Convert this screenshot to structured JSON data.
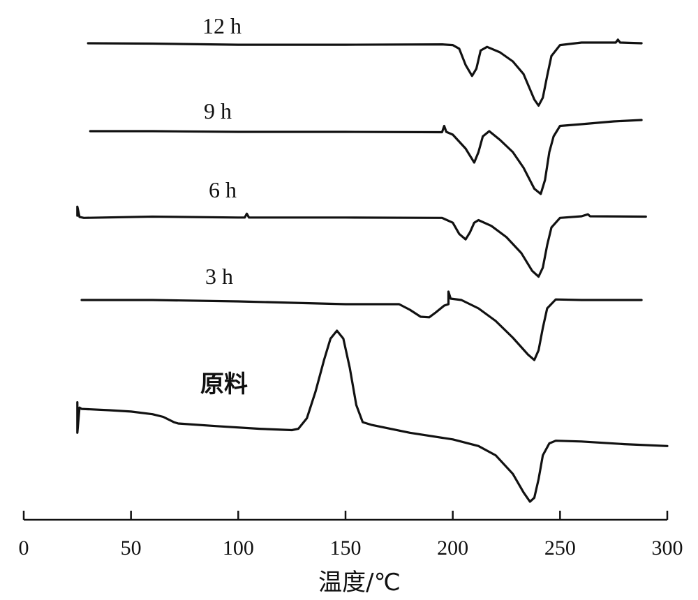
{
  "chart_data": {
    "type": "line",
    "xlabel": "温度/℃",
    "ylabel": "",
    "xlim": [
      0,
      300
    ],
    "xticks": [
      0,
      50,
      100,
      150,
      200,
      250,
      300
    ],
    "y_axis_shown": false,
    "grid": false,
    "legend": "inline labels above each curve",
    "series": [
      {
        "name": "12 h",
        "points": [
          [
            30,
            0
          ],
          [
            60,
            -0.01
          ],
          [
            100,
            -0.04
          ],
          [
            150,
            -0.04
          ],
          [
            195,
            -0.03
          ],
          [
            200,
            -0.05
          ],
          [
            203,
            -0.15
          ],
          [
            206,
            -0.6
          ],
          [
            209,
            -0.9
          ],
          [
            211,
            -0.7
          ],
          [
            213,
            -0.2
          ],
          [
            216,
            -0.1
          ],
          [
            222,
            -0.25
          ],
          [
            228,
            -0.5
          ],
          [
            233,
            -0.85
          ],
          [
            238,
            -1.55
          ],
          [
            240,
            -1.72
          ],
          [
            242,
            -1.5
          ],
          [
            244,
            -0.9
          ],
          [
            246,
            -0.35
          ],
          [
            250,
            -0.05
          ],
          [
            260,
            0.02
          ],
          [
            276,
            0.02
          ],
          [
            277,
            0.1
          ],
          [
            278,
            0.02
          ],
          [
            288,
            0
          ]
        ]
      },
      {
        "name": "9 h",
        "points": [
          [
            31,
            0
          ],
          [
            60,
            0
          ],
          [
            100,
            -0.02
          ],
          [
            150,
            -0.02
          ],
          [
            195,
            -0.03
          ],
          [
            196,
            0.15
          ],
          [
            197,
            -0.02
          ],
          [
            200,
            -0.1
          ],
          [
            203,
            -0.3
          ],
          [
            206,
            -0.5
          ],
          [
            210,
            -0.9
          ],
          [
            212,
            -0.6
          ],
          [
            214,
            -0.15
          ],
          [
            217,
            0
          ],
          [
            222,
            -0.25
          ],
          [
            228,
            -0.6
          ],
          [
            233,
            -1.05
          ],
          [
            238,
            -1.65
          ],
          [
            241,
            -1.8
          ],
          [
            243,
            -1.4
          ],
          [
            245,
            -0.6
          ],
          [
            247,
            -0.15
          ],
          [
            250,
            0.15
          ],
          [
            260,
            0.2
          ],
          [
            275,
            0.28
          ],
          [
            288,
            0.32
          ]
        ]
      },
      {
        "name": "6 h",
        "points": [
          [
            25,
            0.02
          ],
          [
            25,
            0.3
          ],
          [
            26,
            -0.02
          ],
          [
            28,
            -0.05
          ],
          [
            60,
            -0.01
          ],
          [
            100,
            -0.04
          ],
          [
            103,
            -0.04
          ],
          [
            104,
            0.08
          ],
          [
            105,
            -0.04
          ],
          [
            150,
            -0.04
          ],
          [
            195,
            -0.05
          ],
          [
            200,
            -0.2
          ],
          [
            203,
            -0.55
          ],
          [
            206,
            -0.72
          ],
          [
            208,
            -0.5
          ],
          [
            210,
            -0.2
          ],
          [
            212,
            -0.12
          ],
          [
            218,
            -0.3
          ],
          [
            225,
            -0.65
          ],
          [
            232,
            -1.15
          ],
          [
            237,
            -1.7
          ],
          [
            240,
            -1.88
          ],
          [
            242,
            -1.6
          ],
          [
            244,
            -0.9
          ],
          [
            246,
            -0.35
          ],
          [
            250,
            -0.05
          ],
          [
            260,
            0
          ],
          [
            263,
            0.06
          ],
          [
            264,
            0
          ],
          [
            290,
            -0.01
          ]
        ]
      },
      {
        "name": "3 h",
        "points": [
          [
            27,
            0
          ],
          [
            60,
            0
          ],
          [
            100,
            -0.05
          ],
          [
            150,
            -0.15
          ],
          [
            175,
            -0.15
          ],
          [
            180,
            -0.35
          ],
          [
            185,
            -0.6
          ],
          [
            189,
            -0.62
          ],
          [
            192,
            -0.45
          ],
          [
            196,
            -0.2
          ],
          [
            198,
            -0.15
          ],
          [
            198,
            0.3
          ],
          [
            199,
            0.05
          ],
          [
            204,
            0
          ],
          [
            212,
            -0.3
          ],
          [
            220,
            -0.75
          ],
          [
            228,
            -1.35
          ],
          [
            235,
            -1.95
          ],
          [
            238,
            -2.15
          ],
          [
            240,
            -1.8
          ],
          [
            242,
            -1.0
          ],
          [
            244,
            -0.3
          ],
          [
            248,
            0.02
          ],
          [
            260,
            0
          ],
          [
            288,
            0
          ]
        ]
      },
      {
        "name": "原料",
        "points": [
          [
            25,
            0
          ],
          [
            25,
            0.3
          ],
          [
            25,
            -0.85
          ],
          [
            26,
            0.1
          ],
          [
            27,
            0.05
          ],
          [
            40,
            0
          ],
          [
            50,
            -0.05
          ],
          [
            60,
            -0.15
          ],
          [
            65,
            -0.25
          ],
          [
            70,
            -0.45
          ],
          [
            72,
            -0.5
          ],
          [
            90,
            -0.6
          ],
          [
            110,
            -0.7
          ],
          [
            125,
            -0.75
          ],
          [
            128,
            -0.7
          ],
          [
            132,
            -0.3
          ],
          [
            136,
            0.7
          ],
          [
            140,
            1.9
          ],
          [
            143,
            2.7
          ],
          [
            146,
            3.0
          ],
          [
            149,
            2.7
          ],
          [
            152,
            1.6
          ],
          [
            155,
            0.2
          ],
          [
            158,
            -0.45
          ],
          [
            162,
            -0.55
          ],
          [
            180,
            -0.85
          ],
          [
            200,
            -1.1
          ],
          [
            212,
            -1.35
          ],
          [
            220,
            -1.7
          ],
          [
            228,
            -2.4
          ],
          [
            233,
            -3.1
          ],
          [
            236,
            -3.45
          ],
          [
            238,
            -3.3
          ],
          [
            240,
            -2.6
          ],
          [
            242,
            -1.7
          ],
          [
            245,
            -1.25
          ],
          [
            248,
            -1.15
          ],
          [
            260,
            -1.18
          ],
          [
            280,
            -1.28
          ],
          [
            300,
            -1.35
          ]
        ]
      }
    ]
  }
}
